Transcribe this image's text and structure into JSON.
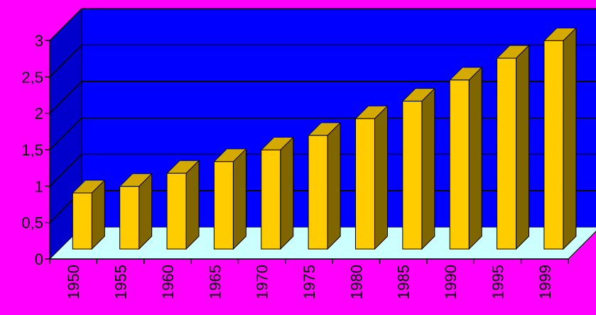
{
  "chart_data": {
    "type": "bar",
    "title": "",
    "xlabel": "",
    "ylabel": "",
    "categories": [
      "1950",
      "1955",
      "1960",
      "1965",
      "1970",
      "1975",
      "1980",
      "1985",
      "1990",
      "1995",
      "1999"
    ],
    "values": [
      0.77,
      0.86,
      1.04,
      1.2,
      1.36,
      1.56,
      1.79,
      2.03,
      2.32,
      2.62,
      2.86
    ],
    "ylim": [
      0,
      3
    ],
    "yticks": [
      0,
      0.5,
      1,
      1.5,
      2,
      2.5,
      3
    ],
    "ytick_labels": [
      "0",
      "0,5",
      "1",
      "1,5",
      "2",
      "2,5",
      "3"
    ],
    "grid": true,
    "legend": "none",
    "colors": {
      "background": "#ff00ff",
      "back_wall": "#0000ff",
      "side_wall": "#0000cc",
      "floor": "#ccffff",
      "bar_front": "#ffcc00",
      "bar_top": "#d4aa00",
      "bar_side": "#806600",
      "gridline": "#000000"
    }
  }
}
